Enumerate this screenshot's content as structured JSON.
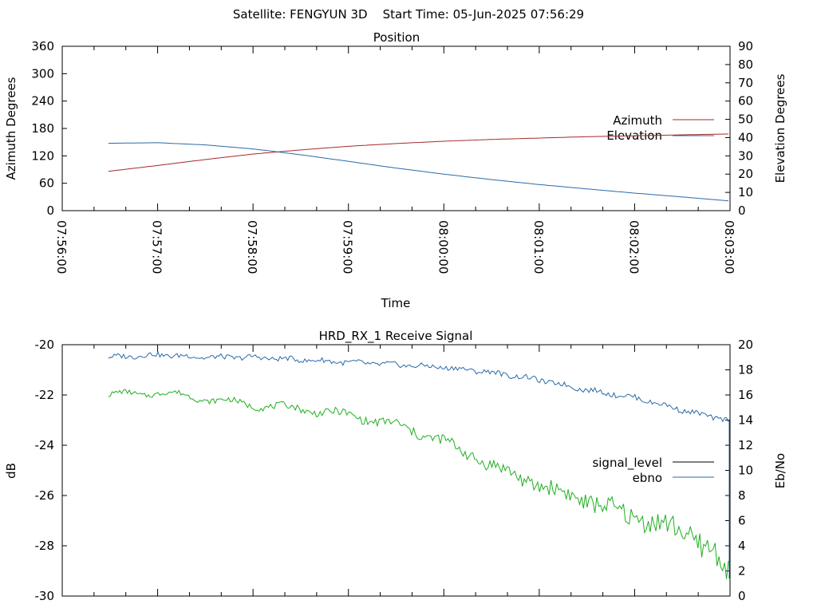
{
  "header": {
    "title": "Satellite: FENGYUN 3D    Start Time: 05-Jun-2025 07:56:29"
  },
  "colors": {
    "azimuth": "#a52a2a",
    "elevation": "#2a6aa8",
    "signal_level": "#000000",
    "ebno_series": "#1fb01f",
    "ebno_legend": "#2a6aa8"
  },
  "chart_data": [
    {
      "type": "line",
      "title": "Position",
      "xlabel": "Time",
      "ylabel": "Azimuth Degrees",
      "y2label": "Elevation Degrees",
      "xlim": [
        "07:56:00",
        "08:03:00"
      ],
      "ylim": [
        0,
        360
      ],
      "y2lim": [
        0,
        90
      ],
      "x_ticks": [
        "07:56:00",
        "07:57:00",
        "07:58:00",
        "07:59:00",
        "08:00:00",
        "08:01:00",
        "08:02:00",
        "08:03:00"
      ],
      "y_ticks": [
        "0",
        "60",
        "120",
        "180",
        "240",
        "300",
        "360"
      ],
      "y2_ticks": [
        "0",
        "10",
        "20",
        "30",
        "40",
        "50",
        "60",
        "70",
        "80",
        "90"
      ],
      "legend_position": "right",
      "grid": false,
      "series": [
        {
          "name": "Azimuth",
          "axis": "left",
          "x": [
            "07:56:29",
            "07:57:00",
            "07:57:30",
            "07:58:00",
            "07:58:30",
            "07:59:00",
            "07:59:30",
            "08:00:00",
            "08:00:30",
            "08:01:00",
            "08:01:30",
            "08:02:00",
            "08:02:30",
            "08:03:00"
          ],
          "values": [
            86,
            99,
            112,
            124,
            133,
            141,
            147,
            152,
            156,
            159,
            162,
            164,
            166,
            168
          ]
        },
        {
          "name": "Elevation",
          "axis": "right",
          "x": [
            "07:56:29",
            "07:57:00",
            "07:57:30",
            "07:58:00",
            "07:58:30",
            "07:59:00",
            "07:59:30",
            "08:00:00",
            "08:00:30",
            "08:01:00",
            "08:01:30",
            "08:02:00",
            "08:02:30",
            "08:03:00"
          ],
          "values": [
            36.9,
            37.2,
            36.0,
            33.8,
            30.6,
            27.0,
            23.3,
            20.0,
            17.0,
            14.3,
            11.9,
            9.6,
            7.5,
            5.3
          ]
        }
      ]
    },
    {
      "type": "line",
      "title": "HRD_RX_1 Receive Signal",
      "xlabel": "",
      "ylabel": "dB",
      "y2label": "Eb/No",
      "xlim": [
        "07:56:00",
        "08:03:00"
      ],
      "ylim": [
        -30,
        -20
      ],
      "y2lim": [
        0,
        20
      ],
      "y_ticks": [
        "-30",
        "-28",
        "-26",
        "-24",
        "-22",
        "-20"
      ],
      "y2_ticks": [
        "0",
        "2",
        "4",
        "6",
        "8",
        "10",
        "12",
        "14",
        "16",
        "18",
        "20"
      ],
      "legend_position": "right",
      "grid": false,
      "series": [
        {
          "name": "signal_level",
          "axis": "left",
          "x": [
            "07:56:29",
            "07:57:00",
            "07:57:30",
            "07:58:00",
            "07:58:30",
            "07:59:00",
            "07:59:30",
            "08:00:00",
            "08:00:30",
            "08:01:00",
            "08:01:30",
            "08:02:00",
            "08:02:30",
            "08:02:50",
            "08:03:00"
          ],
          "values": [
            -20.5,
            -20.4,
            -20.5,
            -20.5,
            -20.6,
            -20.7,
            -20.8,
            -20.9,
            -21.1,
            -21.4,
            -21.8,
            -22.1,
            -22.6,
            -22.9,
            -23.0
          ]
        },
        {
          "name": "ebno",
          "axis": "right",
          "x": [
            "07:56:29",
            "07:57:00",
            "07:57:30",
            "07:58:00",
            "07:58:30",
            "07:59:00",
            "07:59:30",
            "08:00:00",
            "08:00:30",
            "08:01:00",
            "08:01:30",
            "08:02:00",
            "08:02:30",
            "08:02:50",
            "08:03:00"
          ],
          "values": [
            16.0,
            16.2,
            15.7,
            15.2,
            14.9,
            14.4,
            13.6,
            12.3,
            10.4,
            8.8,
            7.6,
            6.3,
            5.2,
            3.5,
            1.5
          ]
        }
      ]
    }
  ]
}
